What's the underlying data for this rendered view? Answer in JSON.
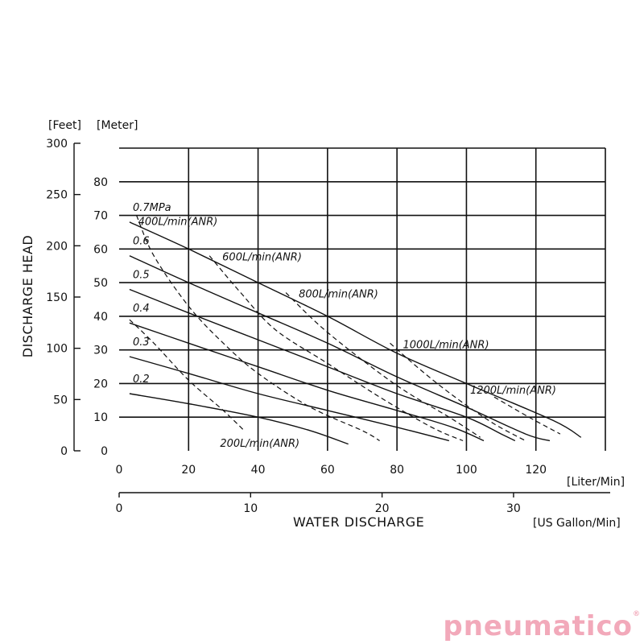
{
  "chart_data": {
    "type": "line",
    "ylabel": "DISCHARGE HEAD",
    "xlabel": "WATER DISCHARGE",
    "units": {
      "feet": "[Feet]",
      "meter": "[Meter]",
      "liter": "[Liter/Min]",
      "gallon": "[US Gallon/Min]"
    },
    "x_liter": {
      "range": [
        0,
        140
      ],
      "ticks": [
        "0",
        "20",
        "40",
        "60",
        "80",
        "100",
        "120"
      ]
    },
    "x_gallon": {
      "ticks": [
        "0",
        "10",
        "20",
        "30"
      ]
    },
    "y_meter": {
      "range": [
        0,
        90
      ],
      "ticks": [
        "0",
        "10",
        "20",
        "30",
        "40",
        "50",
        "60",
        "70",
        "80"
      ]
    },
    "y_feet": {
      "ticks": [
        "0",
        "50",
        "100",
        "150",
        "200",
        "250",
        "300"
      ]
    },
    "grid": true,
    "pressure_series": [
      {
        "name": "0.7MPa",
        "points": [
          [
            3,
            68
          ],
          [
            20,
            60
          ],
          [
            40,
            50
          ],
          [
            60,
            40
          ],
          [
            80,
            29
          ],
          [
            100,
            20
          ],
          [
            125,
            9
          ],
          [
            133,
            4
          ]
        ]
      },
      {
        "name": "0.6",
        "points": [
          [
            3,
            58
          ],
          [
            20,
            50
          ],
          [
            40,
            41
          ],
          [
            60,
            32
          ],
          [
            80,
            22
          ],
          [
            100,
            13
          ],
          [
            117,
            5
          ],
          [
            124,
            3
          ]
        ]
      },
      {
        "name": "0.5",
        "points": [
          [
            3,
            48
          ],
          [
            20,
            41
          ],
          [
            40,
            33
          ],
          [
            60,
            25
          ],
          [
            80,
            17
          ],
          [
            100,
            10
          ],
          [
            110,
            5
          ],
          [
            114,
            3
          ]
        ]
      },
      {
        "name": "0.4",
        "points": [
          [
            3,
            38
          ],
          [
            20,
            32
          ],
          [
            40,
            25
          ],
          [
            60,
            18
          ],
          [
            80,
            12
          ],
          [
            96,
            7
          ],
          [
            105,
            3
          ]
        ]
      },
      {
        "name": "0.3",
        "points": [
          [
            3,
            28
          ],
          [
            20,
            23
          ],
          [
            40,
            17
          ],
          [
            60,
            12
          ],
          [
            80,
            7
          ],
          [
            95,
            3
          ]
        ]
      },
      {
        "name": "0.2",
        "points": [
          [
            3,
            17
          ],
          [
            20,
            14
          ],
          [
            40,
            10
          ],
          [
            55,
            6
          ],
          [
            66,
            2
          ]
        ]
      }
    ],
    "air_series": [
      {
        "name": "200L/min(ANR)",
        "points": [
          [
            3,
            39
          ],
          [
            10,
            32
          ],
          [
            20,
            21
          ],
          [
            30,
            12
          ],
          [
            36,
            6
          ]
        ]
      },
      {
        "name": "400L/min(ANR)",
        "points": [
          [
            5,
            70
          ],
          [
            10,
            58
          ],
          [
            20,
            43
          ],
          [
            30,
            32
          ],
          [
            40,
            23
          ],
          [
            55,
            13
          ],
          [
            70,
            6
          ],
          [
            75,
            3
          ]
        ]
      },
      {
        "name": "600L/min(ANR)",
        "points": [
          [
            26,
            58
          ],
          [
            35,
            47
          ],
          [
            45,
            36
          ],
          [
            60,
            26
          ],
          [
            75,
            16
          ],
          [
            90,
            7
          ],
          [
            99,
            3
          ]
        ]
      },
      {
        "name": "800L/min(ANR)",
        "points": [
          [
            48,
            47
          ],
          [
            58,
            37
          ],
          [
            70,
            27
          ],
          [
            82,
            18
          ],
          [
            95,
            10
          ],
          [
            104,
            4
          ]
        ]
      },
      {
        "name": "1000L/min(ANR)",
        "points": [
          [
            78,
            32
          ],
          [
            88,
            23
          ],
          [
            98,
            15
          ],
          [
            108,
            8
          ],
          [
            117,
            3
          ]
        ]
      },
      {
        "name": "1200L/min(ANR)",
        "points": [
          [
            108,
            16
          ],
          [
            118,
            10
          ],
          [
            127,
            5
          ]
        ]
      }
    ]
  },
  "brand": {
    "name": "pneumatico",
    "mark": "®",
    "color": "#f2a9ba"
  }
}
